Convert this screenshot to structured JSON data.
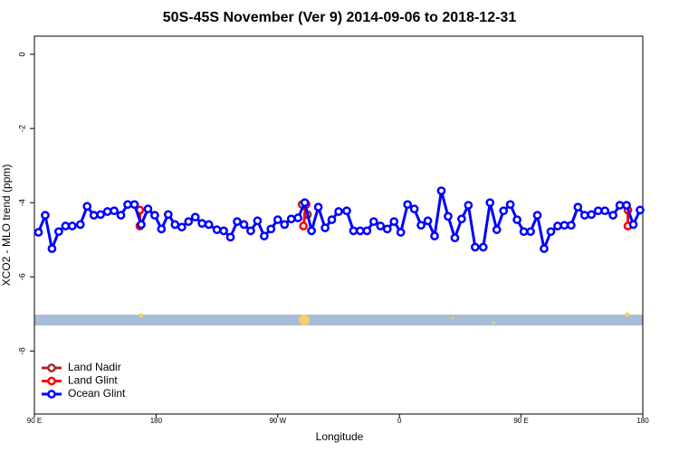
{
  "chart_data": {
    "type": "line",
    "title": "50S-45S November (Ver 9)   2014-09-06 to 2018-12-31",
    "x_label": "Longitude",
    "y_label": "XCO2 - MLO trend (ppm)",
    "xlim": [
      90,
      540
    ],
    "xticks": [
      {
        "value": 90,
        "label": "90 E"
      },
      {
        "value": 180,
        "label": "180"
      },
      {
        "value": 270,
        "label": "90 W"
      },
      {
        "value": 360,
        "label": "0"
      },
      {
        "value": 450,
        "label": "90 E"
      },
      {
        "value": 540,
        "label": "180"
      }
    ],
    "ylim": [
      -9.7,
      0.49
    ],
    "yticks": [
      0,
      -2,
      -4,
      -6,
      -8
    ],
    "legend": "bottom-left",
    "series": [
      {
        "name": "Land Nadir",
        "color": "#a52a2a",
        "x": [
          288,
          292
        ],
        "values": [
          -4.05,
          -4.32
        ]
      },
      {
        "name": "Land Glint",
        "color": "#ff0000",
        "x": [
          168,
          168,
          230,
          289,
          291,
          400,
          529,
          529
        ],
        "values": [
          -4.2,
          -4.63,
          null,
          -4.63,
          -4.05,
          null,
          -4.2,
          -4.63
        ]
      },
      {
        "name": "Ocean Glint",
        "color": "#0000ff",
        "x": [
          93,
          98,
          103,
          108,
          113,
          118,
          124,
          129,
          134,
          139,
          144,
          149,
          154,
          159,
          164,
          169,
          174,
          179,
          184,
          189,
          194,
          199,
          204,
          209,
          214,
          219,
          225,
          230,
          235,
          240,
          245,
          250,
          255,
          260,
          265,
          270,
          275,
          280,
          285,
          290,
          295,
          300,
          305,
          310,
          315,
          321,
          326,
          331,
          336,
          341,
          346,
          351,
          356,
          361,
          366,
          371,
          376,
          381,
          386,
          391,
          396,
          401,
          406,
          411,
          416,
          422,
          427,
          432,
          437,
          442,
          447,
          452,
          457,
          462,
          467,
          472,
          477,
          482,
          487,
          492,
          497,
          502,
          507,
          512,
          518,
          523,
          528,
          533,
          538
        ],
        "values": [
          -4.8,
          -4.34,
          -5.24,
          -4.78,
          -4.63,
          -4.63,
          -4.59,
          -4.1,
          -4.34,
          -4.32,
          -4.24,
          -4.22,
          -4.34,
          -4.05,
          -4.05,
          -4.59,
          -4.17,
          -4.34,
          -4.71,
          -4.32,
          -4.59,
          -4.66,
          -4.51,
          -4.39,
          -4.56,
          -4.59,
          -4.73,
          -4.76,
          -4.93,
          -4.51,
          -4.59,
          -4.76,
          -4.49,
          -4.9,
          -4.71,
          -4.46,
          -4.59,
          -4.44,
          -4.41,
          -4.0,
          -4.76,
          -4.12,
          -4.68,
          -4.46,
          -4.24,
          -4.22,
          -4.76,
          -4.76,
          -4.76,
          -4.51,
          -4.63,
          -4.71,
          -4.51,
          -4.8,
          -4.05,
          -4.17,
          -4.61,
          -4.49,
          -4.9,
          -3.68,
          -4.37,
          -4.95,
          -4.44,
          -4.07,
          -5.2,
          -5.2,
          -4.0,
          -4.73,
          -4.22,
          -4.05,
          -4.46,
          -4.78,
          -4.78,
          -4.34,
          -5.24,
          -4.78,
          -4.63,
          -4.61,
          -4.61,
          -4.12,
          -4.34,
          -4.32,
          -4.22,
          -4.22,
          -4.34,
          -4.07,
          -4.07,
          -4.59,
          -4.2
        ]
      }
    ]
  }
}
